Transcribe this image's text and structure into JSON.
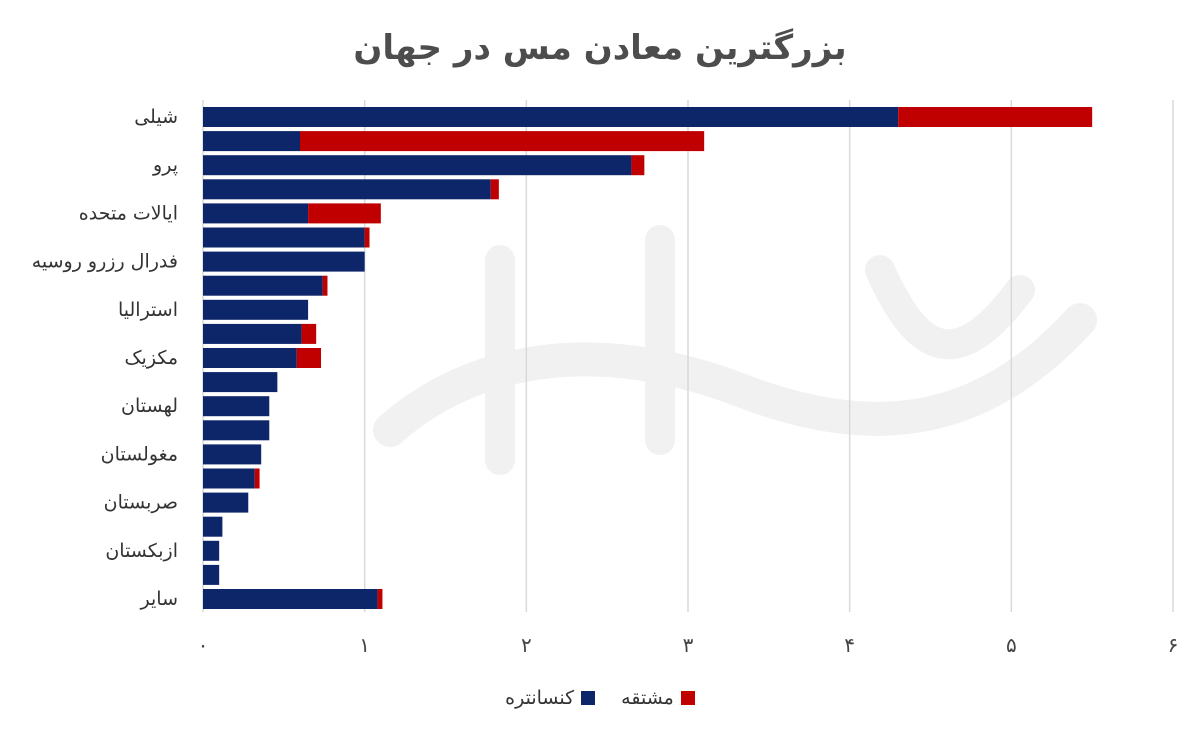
{
  "title": "بزرگترین معادن مس در جهان",
  "colors": {
    "concentrate": "#0d2569",
    "derivative": "#c00000",
    "grid": "#d9d9d9"
  },
  "legend": {
    "concentrate_label": "کنسانتره",
    "derivative_label": "مشتقه"
  },
  "chart_data": {
    "type": "bar",
    "orientation": "horizontal",
    "stacked": true,
    "title": "بزرگترین معادن مس در جهان",
    "xlim": [
      0,
      6
    ],
    "x_ticks": [
      "۰",
      "۱",
      "۲",
      "۳",
      "۴",
      "۵",
      "۶"
    ],
    "grid": true,
    "legend_position": "bottom",
    "categories": [
      "شیلی",
      "",
      "پرو",
      "",
      "ایالات متحده",
      "",
      "فدرال رزرو روسیه",
      "",
      "استرالیا",
      "",
      "مکزیک",
      "",
      "لهستان",
      "",
      "مغولستان",
      "",
      "صربستان",
      "",
      "ازبکستان",
      "",
      "سایر"
    ],
    "series": [
      {
        "name": "کنسانتره",
        "values": [
          4.3,
          0.6,
          2.65,
          1.78,
          0.65,
          1.0,
          1.0,
          0.74,
          0.65,
          0.61,
          0.58,
          0.46,
          0.41,
          0.41,
          0.36,
          0.32,
          0.28,
          0.12,
          0.1,
          0.1,
          1.08
        ]
      },
      {
        "name": "مشتقه",
        "values": [
          1.2,
          2.5,
          0.08,
          0.05,
          0.45,
          0.03,
          0.0,
          0.03,
          0.0,
          0.09,
          0.15,
          0.0,
          0.0,
          0.0,
          0.0,
          0.03,
          0.0,
          0.0,
          0.0,
          0.0,
          0.03
        ]
      }
    ]
  }
}
